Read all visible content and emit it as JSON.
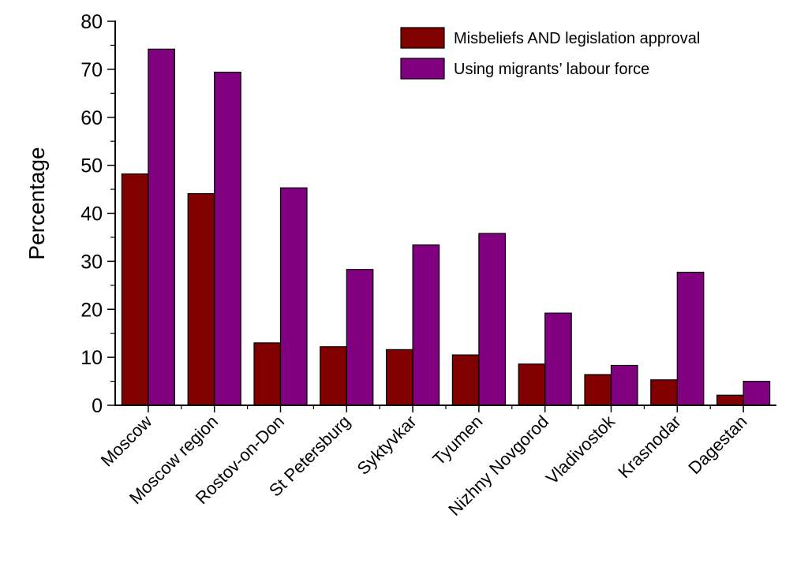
{
  "chart_data": {
    "type": "bar",
    "title": "",
    "xlabel": "",
    "ylabel": "Percentage",
    "ylim": [
      0,
      80
    ],
    "yticks": [
      0,
      10,
      20,
      30,
      40,
      50,
      60,
      70,
      80
    ],
    "grid": false,
    "legend_position": "top-right",
    "categories": [
      "Moscow",
      "Moscow region",
      "Rostov-on-Don",
      "St Petersburg",
      "Syktyvkar",
      "Tyumen",
      "Nizhny Novgorod",
      "Vladivostok",
      "Krasnodar",
      "Dagestan"
    ],
    "series": [
      {
        "name": "Misbeliefs AND legislation approval",
        "color": "#800000",
        "values": [
          48.2,
          44.1,
          13.0,
          12.2,
          11.6,
          10.5,
          8.6,
          6.4,
          5.3,
          2.1
        ]
      },
      {
        "name": "Using migrants’ labour force",
        "color": "#800080",
        "values": [
          74.2,
          69.4,
          45.3,
          28.3,
          33.4,
          35.8,
          19.2,
          8.3,
          27.7,
          5.0
        ]
      }
    ]
  }
}
